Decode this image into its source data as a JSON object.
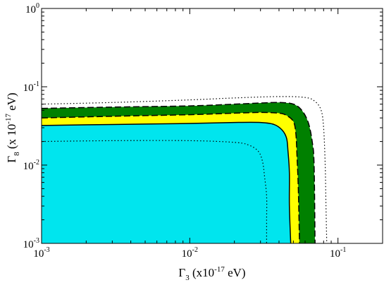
{
  "chart_data": {
    "type": "area",
    "scale": {
      "x": "log",
      "y": "log"
    },
    "xlim": [
      0.001,
      0.2
    ],
    "ylim": [
      0.001,
      1
    ],
    "x_ticks": [
      {
        "value": 0.001,
        "base": "10",
        "exp": "-3"
      },
      {
        "value": 0.01,
        "base": "10",
        "exp": "-2"
      },
      {
        "value": 0.1,
        "base": "10",
        "exp": "-1"
      }
    ],
    "y_ticks": [
      {
        "value": 0.001,
        "base": "10",
        "exp": "-3"
      },
      {
        "value": 0.01,
        "base": "10",
        "exp": "-2"
      },
      {
        "value": 0.1,
        "base": "10",
        "exp": "-1"
      },
      {
        "value": 1,
        "base": "10",
        "exp": "0"
      }
    ],
    "xlabel": {
      "symbol": "Γ",
      "sub": "3",
      "pre": " (x10",
      "sup": "-17",
      "post": " eV)"
    },
    "ylabel": {
      "symbol": "Γ",
      "sub": "8",
      "pre": " (x 10",
      "sup": "-17",
      "post": " eV)"
    },
    "colors": {
      "outer_region": "#008000",
      "middle_region": "#ffff00",
      "inner_region": "#00e5ee"
    },
    "regions": [
      {
        "id": "outer",
        "fill": "#008000",
        "boundary": "dashed",
        "points": [
          [
            0.001,
            0.053
          ],
          [
            0.003,
            0.055
          ],
          [
            0.01,
            0.057
          ],
          [
            0.02,
            0.06
          ],
          [
            0.03,
            0.062
          ],
          [
            0.04,
            0.063
          ],
          [
            0.05,
            0.06
          ],
          [
            0.057,
            0.05
          ],
          [
            0.063,
            0.035
          ],
          [
            0.067,
            0.02
          ],
          [
            0.069,
            0.01
          ],
          [
            0.07,
            0.001
          ]
        ]
      },
      {
        "id": "middle",
        "fill": "#ffff00",
        "boundary": "dashed",
        "points": [
          [
            0.001,
            0.04
          ],
          [
            0.003,
            0.042
          ],
          [
            0.01,
            0.044
          ],
          [
            0.02,
            0.046
          ],
          [
            0.03,
            0.047
          ],
          [
            0.04,
            0.046
          ],
          [
            0.045,
            0.043
          ],
          [
            0.05,
            0.036
          ],
          [
            0.052,
            0.025
          ],
          [
            0.053,
            0.012
          ],
          [
            0.054,
            0.005
          ],
          [
            0.055,
            0.001
          ]
        ]
      },
      {
        "id": "inner",
        "fill": "#00e5ee",
        "boundary": "solid",
        "points": [
          [
            0.001,
            0.032
          ],
          [
            0.003,
            0.033
          ],
          [
            0.01,
            0.034
          ],
          [
            0.02,
            0.035
          ],
          [
            0.03,
            0.035
          ],
          [
            0.037,
            0.033
          ],
          [
            0.042,
            0.028
          ],
          [
            0.045,
            0.022
          ],
          [
            0.046,
            0.015
          ],
          [
            0.047,
            0.008
          ],
          [
            0.047,
            0.003
          ],
          [
            0.048,
            0.001
          ]
        ]
      }
    ],
    "contours": [
      {
        "id": "outer-dotted",
        "style": "dotted",
        "points": [
          [
            0.001,
            0.06
          ],
          [
            0.003,
            0.063
          ],
          [
            0.01,
            0.068
          ],
          [
            0.02,
            0.072
          ],
          [
            0.04,
            0.075
          ],
          [
            0.06,
            0.073
          ],
          [
            0.07,
            0.065
          ],
          [
            0.077,
            0.05
          ],
          [
            0.08,
            0.03
          ],
          [
            0.082,
            0.01
          ],
          [
            0.083,
            0.003
          ],
          [
            0.084,
            0.001
          ]
        ]
      },
      {
        "id": "inner-dotted",
        "style": "dotted",
        "points": [
          [
            0.001,
            0.02
          ],
          [
            0.003,
            0.0205
          ],
          [
            0.01,
            0.0205
          ],
          [
            0.02,
            0.0195
          ],
          [
            0.025,
            0.018
          ],
          [
            0.029,
            0.015
          ],
          [
            0.031,
            0.011
          ],
          [
            0.032,
            0.007
          ],
          [
            0.033,
            0.004
          ],
          [
            0.033,
            0.002
          ],
          [
            0.033,
            0.001
          ]
        ]
      }
    ]
  }
}
